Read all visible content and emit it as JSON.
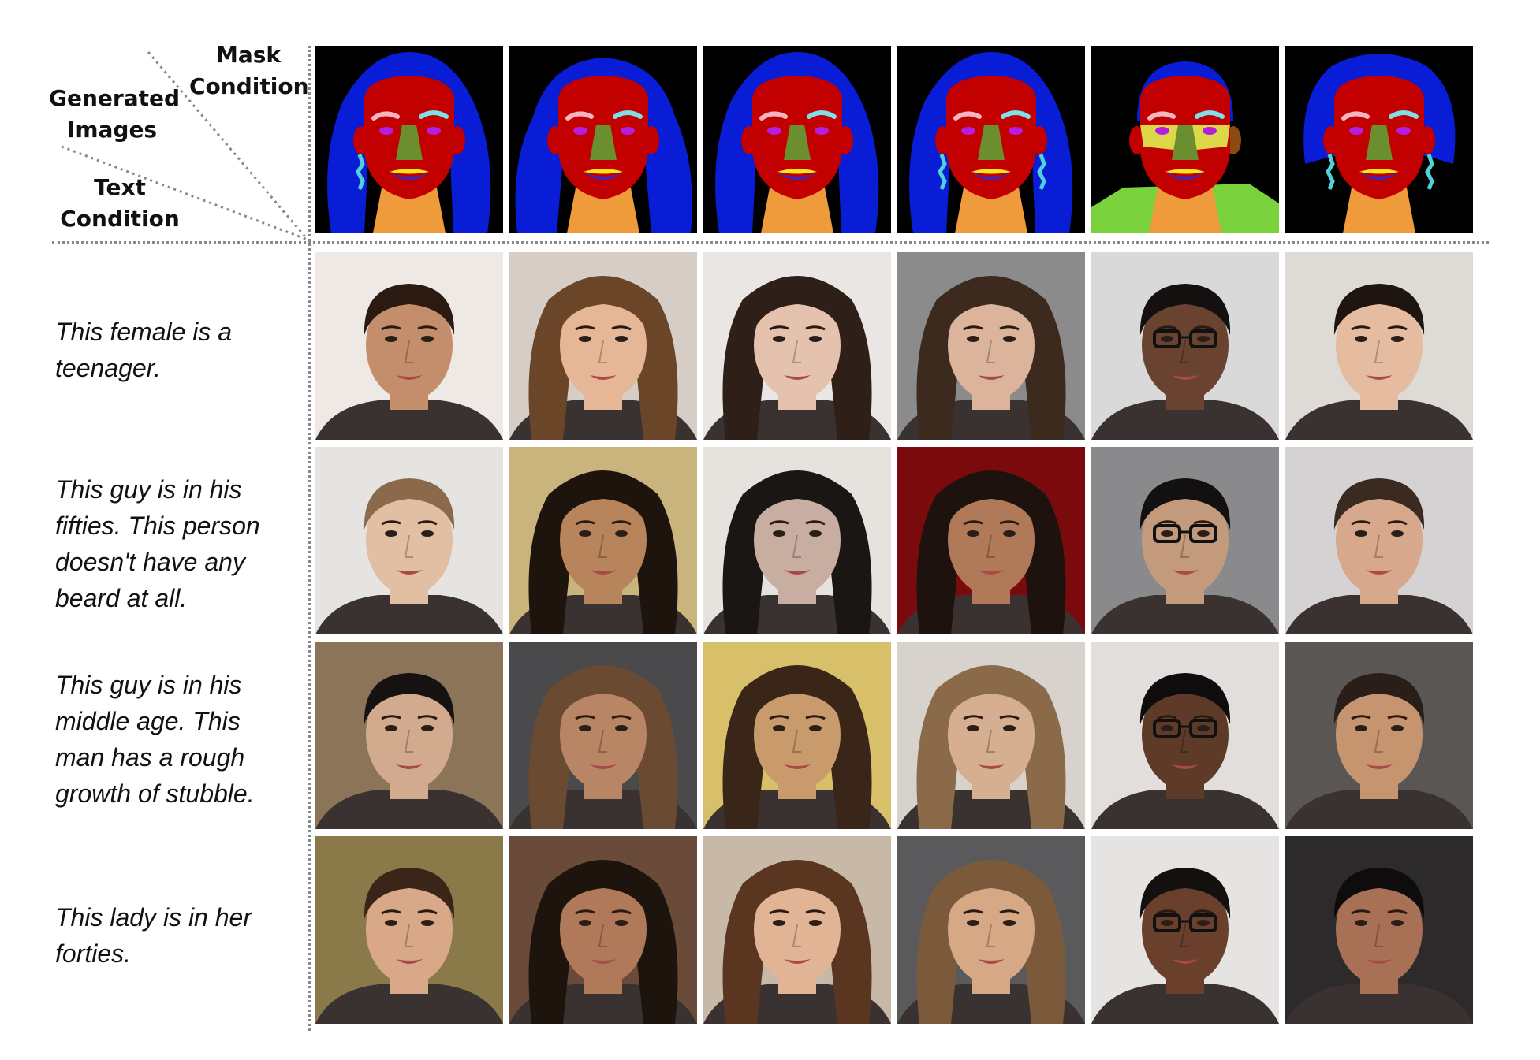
{
  "header": {
    "mask_condition": [
      "Mask",
      "Condition"
    ],
    "generated_images": [
      "Generated",
      "Images"
    ],
    "text_condition": [
      "Text",
      "Condition"
    ]
  },
  "mask_row": [
    {
      "hair": "long",
      "earrings": true,
      "glasses": false,
      "shirt": "none"
    },
    {
      "hair": "wavy",
      "earrings": false,
      "glasses": false,
      "shirt": "none"
    },
    {
      "hair": "long",
      "earrings": false,
      "glasses": false,
      "shirt": "none"
    },
    {
      "hair": "bangs",
      "earrings": true,
      "glasses": false,
      "shirt": "none"
    },
    {
      "hair": "short",
      "earrings": false,
      "glasses": true,
      "shirt": "green"
    },
    {
      "hair": "up",
      "earrings": true,
      "glasses": false,
      "shirt": "none"
    }
  ],
  "mask_colors": {
    "background": "#000000",
    "hair": "#0a1dd6",
    "face": "#c20000",
    "neck": "#ef9b3c",
    "nose": "#6b8f2e",
    "eye": "#b51ee0",
    "brow_left": "#f6b6c0",
    "brow_right": "#7fe0ea",
    "lip_upper": "#f6e61a",
    "lip_lower": "#2d2ad0",
    "ear": "#8b4a10",
    "earring": "#4fd3d8",
    "glasses": "#dcd84a",
    "cloth": "#7ad23c"
  },
  "rows": [
    {
      "caption": [
        "This female is a",
        "teenager."
      ],
      "faces": [
        {
          "bg": "#efe9e6",
          "hair": "#2a1a12",
          "skin": "#c48e6c",
          "hair_style": "short",
          "glasses": false
        },
        {
          "bg": "#d5cdc6",
          "hair": "#6b4528",
          "skin": "#e6b796",
          "hair_style": "long",
          "glasses": false
        },
        {
          "bg": "#e9e6e4",
          "hair": "#2e2019",
          "skin": "#e4c2ad",
          "hair_style": "long",
          "glasses": false
        },
        {
          "bg": "#8b8b8b",
          "hair": "#3d2a1f",
          "skin": "#dcb49c",
          "hair_style": "long",
          "glasses": false
        },
        {
          "bg": "#d9d9d9",
          "hair": "#141010",
          "skin": "#6a4330",
          "hair_style": "short",
          "glasses": true
        },
        {
          "bg": "#dedbd6",
          "hair": "#1e1410",
          "skin": "#e6bca0",
          "hair_style": "short",
          "glasses": false
        }
      ]
    },
    {
      "caption": [
        "This guy is in his",
        "fifties. This person",
        "doesn't have any",
        "beard at all."
      ],
      "faces": [
        {
          "bg": "#e6e4e2",
          "hair": "#8a6a4a",
          "skin": "#e2bea2",
          "hair_style": "short",
          "glasses": false
        },
        {
          "bg": "#c8b47c",
          "hair": "#1e140e",
          "skin": "#b8845c",
          "hair_style": "long",
          "glasses": false
        },
        {
          "bg": "#e6e2de",
          "hair": "#1a1614",
          "skin": "#c8aea0",
          "hair_style": "long",
          "glasses": false
        },
        {
          "bg": "#7a0a0c",
          "hair": "#1e120e",
          "skin": "#b07a58",
          "hair_style": "long",
          "glasses": false
        },
        {
          "bg": "#8a8a8c",
          "hair": "#121010",
          "skin": "#c49a7c",
          "hair_style": "short",
          "glasses": true
        },
        {
          "bg": "#d4d2d2",
          "hair": "#3a2a20",
          "skin": "#d8a88c",
          "hair_style": "short",
          "glasses": false
        }
      ]
    },
    {
      "caption": [
        "This guy is in his",
        "middle age. This",
        "man has a rough",
        "growth of stubble."
      ],
      "faces": [
        {
          "bg": "#8c7458",
          "hair": "#161212",
          "skin": "#d2aa8e",
          "hair_style": "short",
          "glasses": false
        },
        {
          "bg": "#4a4a4c",
          "hair": "#6a4a30",
          "skin": "#b88664",
          "hair_style": "long",
          "glasses": false
        },
        {
          "bg": "#d8c06a",
          "hair": "#3a2618",
          "skin": "#c89a6c",
          "hair_style": "long",
          "glasses": false
        },
        {
          "bg": "#d8d2cc",
          "hair": "#8a6a48",
          "skin": "#d6ae90",
          "hair_style": "long",
          "glasses": false
        },
        {
          "bg": "#e2dedc",
          "hair": "#0e0c0c",
          "skin": "#5e3a28",
          "hair_style": "short",
          "glasses": true
        },
        {
          "bg": "#5a5654",
          "hair": "#2a1e18",
          "skin": "#c6946e",
          "hair_style": "short",
          "glasses": false
        }
      ]
    },
    {
      "caption": [
        "This lady is in her",
        "forties."
      ],
      "faces": [
        {
          "bg": "#8a7a4a",
          "hair": "#3a2618",
          "skin": "#d8a888",
          "hair_style": "short",
          "glasses": false
        },
        {
          "bg": "#6a4a38",
          "hair": "#1e140e",
          "skin": "#b07a5a",
          "hair_style": "long",
          "glasses": false
        },
        {
          "bg": "#c8b8a8",
          "hair": "#5a3620",
          "skin": "#e2b496",
          "hair_style": "long",
          "glasses": false
        },
        {
          "bg": "#5a5a5c",
          "hair": "#7a5a3a",
          "skin": "#d6a886",
          "hair_style": "long",
          "glasses": false
        },
        {
          "bg": "#e6e4e2",
          "hair": "#141010",
          "skin": "#6a402c",
          "hair_style": "short",
          "glasses": true
        },
        {
          "bg": "#2c2a2a",
          "hair": "#0e0c0c",
          "skin": "#a87054",
          "hair_style": "short",
          "glasses": false
        }
      ]
    }
  ]
}
